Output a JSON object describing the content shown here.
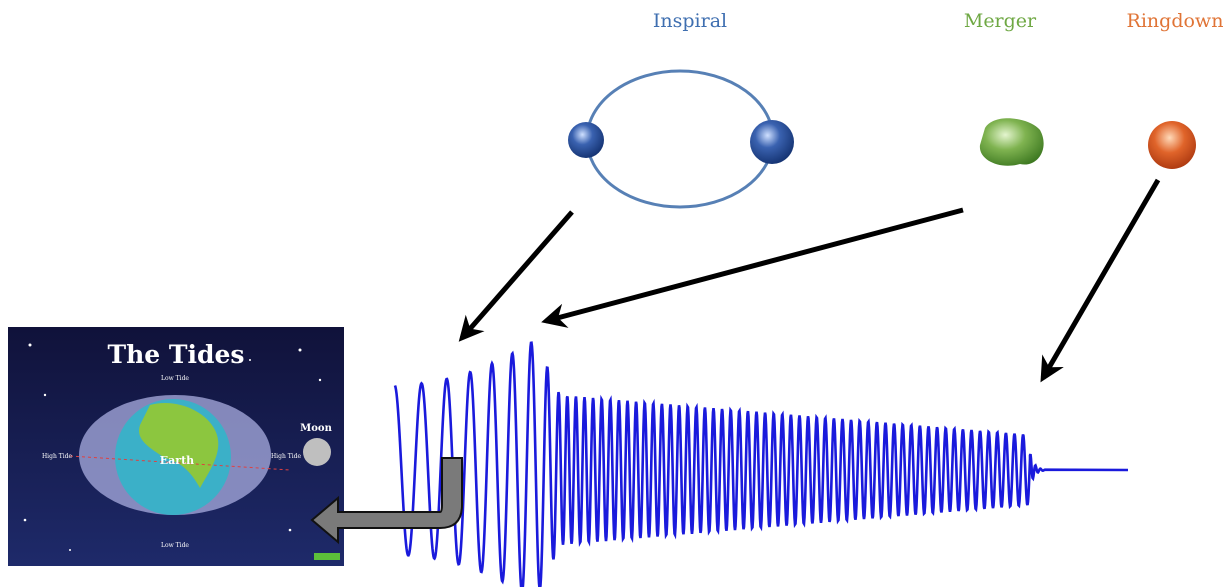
{
  "phases": {
    "inspiral": "Inspiral",
    "merger": "Merger",
    "ringdown": "Ringdown"
  },
  "tides_image": {
    "title": "The Tides",
    "low_tide_top": "Low Tide",
    "low_tide_bottom": "Low Tide",
    "high_tide_left": "High Tide",
    "high_tide_right": "High Tide",
    "moon": "Moon",
    "earth": "Earth"
  }
}
